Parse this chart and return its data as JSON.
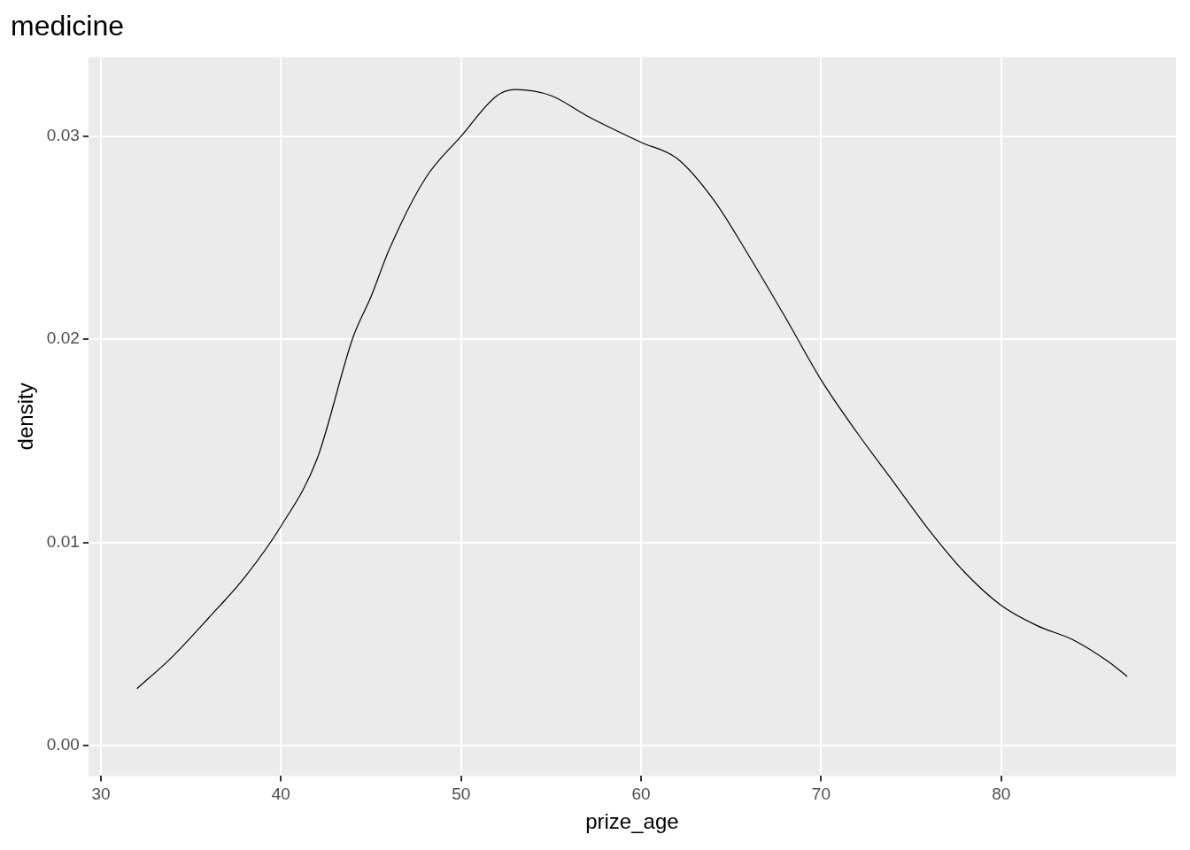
{
  "chart_data": {
    "type": "line",
    "title": "medicine",
    "xlabel": "prize_age",
    "ylabel": "density",
    "x": [
      32,
      34,
      36,
      38,
      40,
      42,
      44,
      45,
      46,
      48,
      50,
      52,
      53,
      55,
      57,
      60,
      62,
      64,
      66,
      68,
      70,
      72,
      74,
      76,
      78,
      80,
      82,
      84,
      86,
      87
    ],
    "series": [
      {
        "color": "#000000",
        "values": [
          0.0028,
          0.0044,
          0.0063,
          0.0083,
          0.0108,
          0.0141,
          0.0201,
          0.0221,
          0.0244,
          0.0279,
          0.03,
          0.032,
          0.0323,
          0.032,
          0.031,
          0.0297,
          0.0289,
          0.0269,
          0.0241,
          0.0211,
          0.018,
          0.0154,
          0.013,
          0.0106,
          0.0085,
          0.0069,
          0.0059,
          0.0052,
          0.0041,
          0.0034
        ]
      }
    ],
    "xlim": [
      29.3,
      89.7
    ],
    "xticks": [
      30,
      40,
      50,
      60,
      70,
      80
    ],
    "ylim": [
      -0.0015,
      0.0339
    ],
    "yticks": [
      {
        "value": 0,
        "label": "0.00"
      },
      {
        "value": 0.01,
        "label": "0.01"
      },
      {
        "value": 0.02,
        "label": "0.02"
      },
      {
        "value": 0.03,
        "label": "0.03"
      }
    ],
    "grid": true,
    "legend": false,
    "marker": "none",
    "line_style": "solid"
  }
}
